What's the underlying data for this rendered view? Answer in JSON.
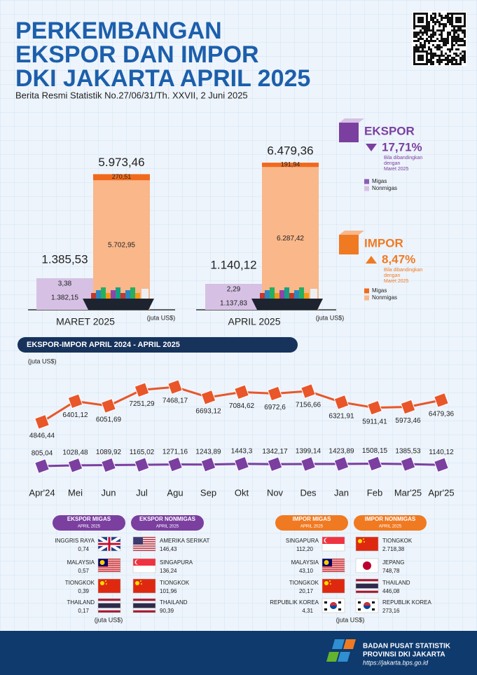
{
  "header": {
    "title_lines": [
      "PERKEMBANGAN",
      "EKSPOR DAN IMPOR",
      "DKI JAKARTA APRIL 2025"
    ],
    "subtitle": "Berita Resmi Statistik No.27/06/31/Th. XXVII, 2 Juni 2025"
  },
  "chart_data": [
    {
      "type": "bar",
      "categories": [
        "MARET 2025",
        "APRIL 2025"
      ],
      "unit_label": "(juta US$)",
      "bars": [
        {
          "name": "EKSPOR",
          "totals": [
            1385.53,
            1140.12
          ],
          "total_labels": [
            "1.385,53",
            "1.140,12"
          ],
          "change_label": "17,71%",
          "direction": "down",
          "note_lines": [
            "Bila dibandingkan",
            "dengan",
            "Maret 2025"
          ],
          "color": "#7b3fa0",
          "segments": [
            {
              "name": "Migas",
              "color": "#8e5bb3",
              "values": [
                3.38,
                2.29
              ],
              "value_labels": [
                "3,38",
                "2,29"
              ]
            },
            {
              "name": "Nonmigas",
              "color": "#d6c1e4",
              "values": [
                1382.15,
                1137.83
              ],
              "value_labels": [
                "1.382,15",
                "1.137,83"
              ]
            }
          ]
        },
        {
          "name": "IMPOR",
          "totals": [
            5973.46,
            6479.36
          ],
          "total_labels": [
            "5.973,46",
            "6.479,36"
          ],
          "change_label": "8,47%",
          "direction": "up",
          "note_lines": [
            "Bila dibandingkan",
            "dengan",
            "Maret 2025"
          ],
          "color": "#f07a22",
          "segments": [
            {
              "name": "Migas",
              "color": "#f06a1d",
              "values": [
                270.51,
                191.94
              ],
              "value_labels": [
                "270,51",
                "191,94"
              ]
            },
            {
              "name": "Nonmigas",
              "color": "#f9b78a",
              "values": [
                5702.95,
                6287.42
              ],
              "value_labels": [
                "5.702,95",
                "6.287,42"
              ]
            }
          ]
        }
      ]
    },
    {
      "type": "line",
      "title": "EKSPOR-IMPOR APRIL 2024 - APRIL 2025",
      "unit_label": "(juta US$)",
      "categories": [
        "Apr'24",
        "Mei",
        "Jun",
        "Jul",
        "Agu",
        "Sep",
        "Okt",
        "Nov",
        "Des",
        "Jan",
        "Feb",
        "Mar'25",
        "Apr'25"
      ],
      "ylim": [
        4000,
        8000
      ],
      "y2lim": [
        0,
        4000
      ],
      "series": [
        {
          "color": "#e8562a",
          "values": [
            4846.44,
            6401.12,
            6051.69,
            7251.29,
            7468.17,
            6693.12,
            7084.62,
            6972.6,
            7156.66,
            6321.91,
            5911.41,
            5973.46,
            6479.36
          ],
          "value_labels": [
            "4846,44",
            "6401,12",
            "6051,69",
            "7251,29",
            "7468,17",
            "6693,12",
            "7084,62",
            "6972,6",
            "7156,66",
            "6321,91",
            "5911,41",
            "5973,46",
            "6479,36"
          ]
        },
        {
          "color": "#7b3fa0",
          "axis": "y2",
          "values": [
            805.04,
            1028.48,
            1089.92,
            1165.02,
            1271.16,
            1243.89,
            1443.3,
            1342.17,
            1399.14,
            1423.89,
            1508.15,
            1385.53,
            1140.12
          ],
          "value_labels": [
            "805,04",
            "1028,48",
            "1089,92",
            "1165,02",
            "1271,16",
            "1243,89",
            "1443,3",
            "1342,17",
            "1399,14",
            "1423,89",
            "1508,15",
            "1385,53",
            "1140,12"
          ]
        }
      ]
    }
  ],
  "tables": [
    {
      "title": "EKSPOR MIGAS",
      "period": "APRIL 2025",
      "rows": [
        [
          "INGGRIS RAYA",
          "0,74"
        ],
        [
          "MALAYSIA",
          "0,57"
        ],
        [
          "TIONGKOK",
          "0,39"
        ],
        [
          "THAILAND",
          "0,17"
        ]
      ]
    },
    {
      "title": "EKSPOR NONMIGAS",
      "period": "APRIL 2025",
      "rows": [
        [
          "AMERIKA SERIKAT",
          "146,43"
        ],
        [
          "SINGAPURA",
          "136,24"
        ],
        [
          "TIONGKOK",
          "101,96"
        ],
        [
          "THAILAND",
          "90,39"
        ]
      ]
    },
    {
      "title": "IMPOR MIGAS",
      "period": "APRIL 2025",
      "rows": [
        [
          "SINGAPURA",
          "112,20"
        ],
        [
          "MALAYSIA",
          "43,10"
        ],
        [
          "TIONGKOK",
          "20,17"
        ],
        [
          "REPUBLIK KOREA",
          "4,31"
        ]
      ]
    },
    {
      "title": "IMPOR NONMIGAS",
      "period": "APRIL 2025",
      "rows": [
        [
          "TIONGKOK",
          "2.718,38"
        ],
        [
          "JEPANG",
          "748,78"
        ],
        [
          "THAILAND",
          "446,08"
        ],
        [
          "REPUBLIK KOREA",
          "273,16"
        ]
      ]
    }
  ],
  "table_unit_label": "(juta US$)",
  "footer": {
    "lines": [
      "BADAN PUSAT STATISTIK",
      "PROVINSI DKI JAKARTA"
    ],
    "url": "https://jakarta.bps.go.id"
  }
}
